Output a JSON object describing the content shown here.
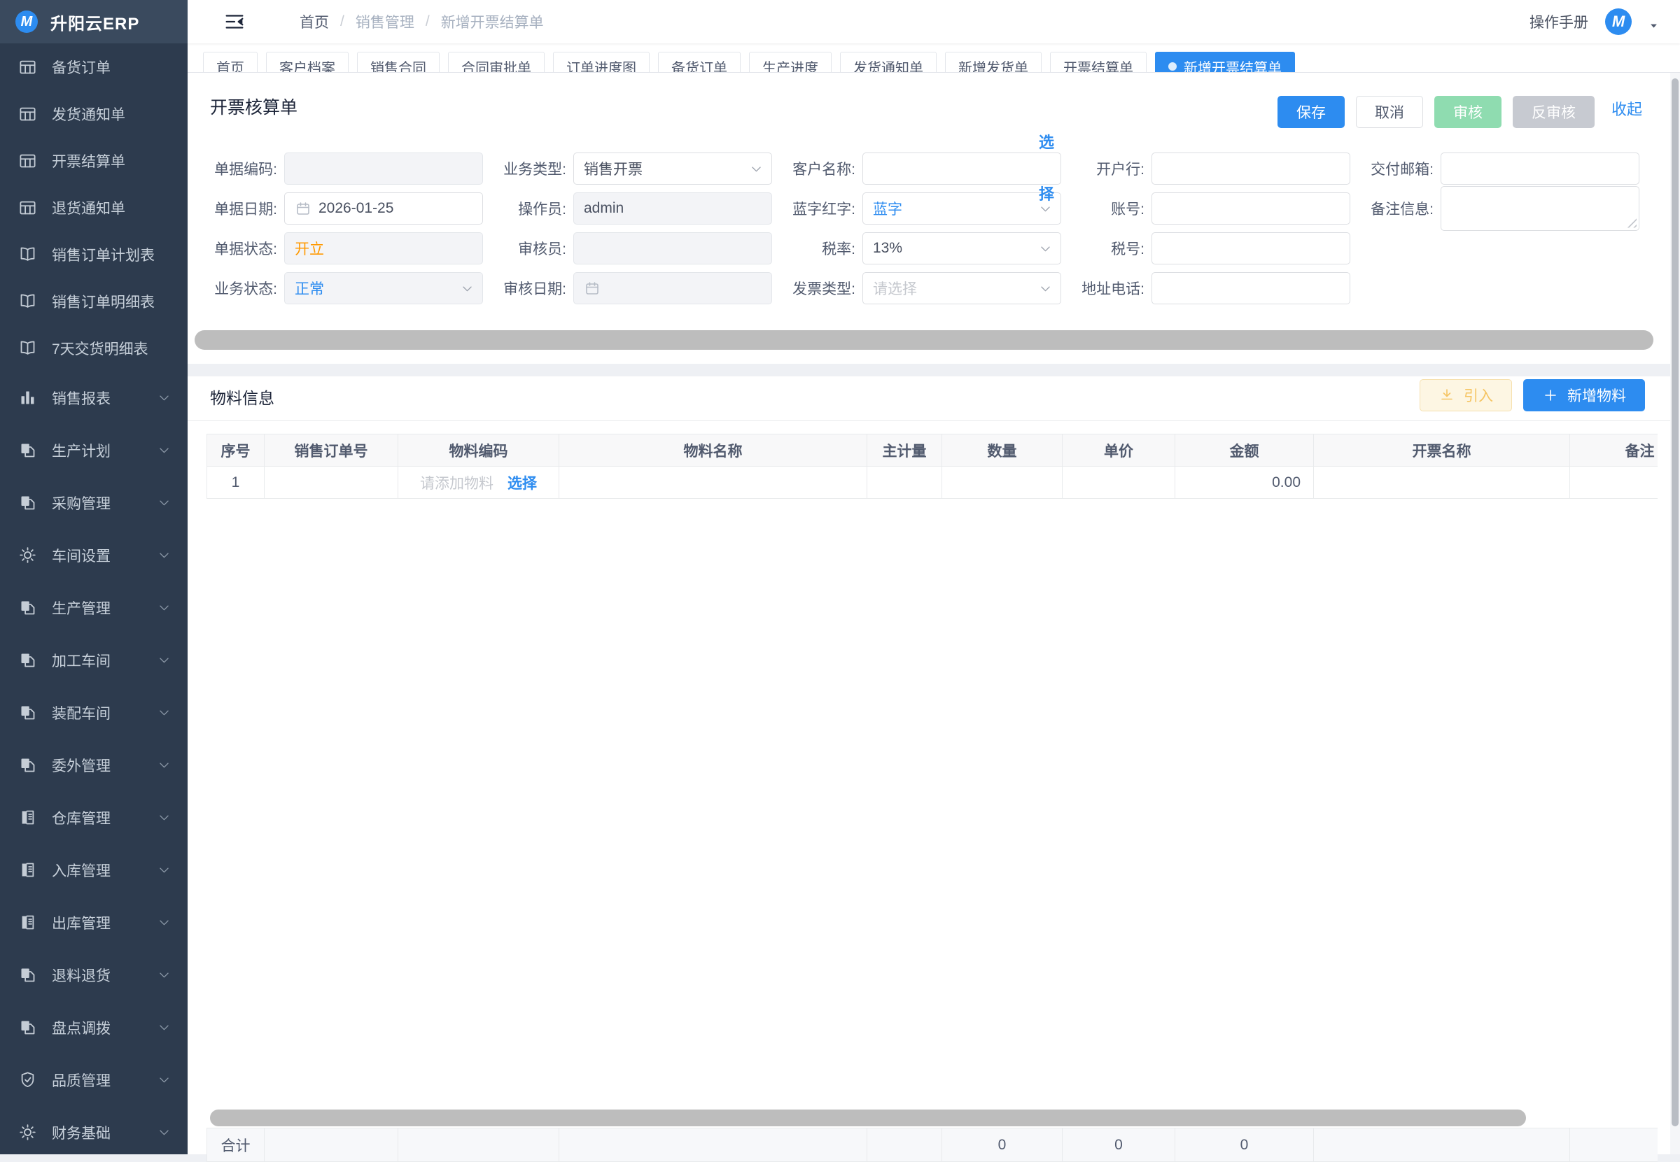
{
  "app": {
    "name": "升阳云ERP",
    "logo_letter": "M"
  },
  "sidebar": {
    "items": [
      {
        "name": "stock-order",
        "label": "备货订单",
        "icon": "grid-icon",
        "type": "leaf"
      },
      {
        "name": "ship-notice",
        "label": "发货通知单",
        "icon": "grid-icon",
        "type": "leaf"
      },
      {
        "name": "invoice-settle",
        "label": "开票结算单",
        "icon": "grid-icon",
        "type": "leaf"
      },
      {
        "name": "return-notice",
        "label": "退货通知单",
        "icon": "grid-icon",
        "type": "leaf"
      },
      {
        "name": "so-plan-report",
        "label": "销售订单计划表",
        "icon": "book-icon",
        "type": "leaf"
      },
      {
        "name": "so-detail-report",
        "label": "销售订单明细表",
        "icon": "book-icon",
        "type": "leaf"
      },
      {
        "name": "delivery-7day",
        "label": "7天交货明细表",
        "icon": "book-icon",
        "type": "leaf"
      },
      {
        "name": "sales-report",
        "label": "销售报表",
        "icon": "chart-icon",
        "type": "group"
      },
      {
        "name": "prod-plan",
        "label": "生产计划",
        "icon": "copy-icon",
        "type": "group"
      },
      {
        "name": "purchase-mgmt",
        "label": "采购管理",
        "icon": "copy-icon",
        "type": "group"
      },
      {
        "name": "workshop-config",
        "label": "车间设置",
        "icon": "gear-icon",
        "type": "group"
      },
      {
        "name": "prod-mgmt",
        "label": "生产管理",
        "icon": "copy-icon",
        "type": "group"
      },
      {
        "name": "process-workshop",
        "label": "加工车间",
        "icon": "copy-icon",
        "type": "group"
      },
      {
        "name": "assembly-workshop",
        "label": "装配车间",
        "icon": "copy-icon",
        "type": "group"
      },
      {
        "name": "outsource-mgmt",
        "label": "委外管理",
        "icon": "copy-icon",
        "type": "group"
      },
      {
        "name": "warehouse-mgmt",
        "label": "仓库管理",
        "icon": "journal-icon",
        "type": "group"
      },
      {
        "name": "inbound-mgmt",
        "label": "入库管理",
        "icon": "journal-icon",
        "type": "group"
      },
      {
        "name": "outbound-mgmt",
        "label": "出库管理",
        "icon": "journal-icon",
        "type": "group"
      },
      {
        "name": "material-return",
        "label": "退料退货",
        "icon": "copy-icon",
        "type": "group"
      },
      {
        "name": "stocktake-transfer",
        "label": "盘点调拨",
        "icon": "copy-icon",
        "type": "group"
      },
      {
        "name": "quality-mgmt",
        "label": "品质管理",
        "icon": "shield-icon",
        "type": "group"
      },
      {
        "name": "finance-base",
        "label": "财务基础",
        "icon": "gear-icon",
        "type": "group"
      }
    ]
  },
  "header": {
    "breadcrumb": [
      "首页",
      "销售管理",
      "新增开票结算单"
    ],
    "manual_link": "操作手册"
  },
  "tabs": {
    "items": [
      "首页",
      "客户档案",
      "销售合同",
      "合同审批单",
      "订单进度图",
      "备货订单",
      "生产进度",
      "发货通知单",
      "新增发货单",
      "开票结算单",
      "新增开票结算单"
    ],
    "active": "新增开票结算单"
  },
  "doc_panel": {
    "title": "开票核算单",
    "buttons": {
      "save": "保存",
      "cancel": "取消",
      "audit": "审核",
      "unaudit": "反审核",
      "collapse": "收起"
    },
    "fields": [
      {
        "name": "doc-code",
        "label": "单据编码:",
        "type": "input",
        "value": "",
        "disabled": true
      },
      {
        "name": "biz-type",
        "label": "业务类型:",
        "type": "select",
        "value": "销售开票"
      },
      {
        "name": "customer-name",
        "label": "客户名称:",
        "type": "input",
        "value": "",
        "select_button": "选择"
      },
      {
        "name": "bank",
        "label": "开户行:",
        "type": "input",
        "value": ""
      },
      {
        "name": "delivery-email",
        "label": "交付邮箱:",
        "type": "input",
        "value": ""
      },
      {
        "name": "doc-date",
        "label": "单据日期:",
        "type": "date",
        "value": "2026-01-25"
      },
      {
        "name": "operator",
        "label": "操作员:",
        "type": "input",
        "value": "admin",
        "disabled": true
      },
      {
        "name": "blue-red",
        "label": "蓝字红字:",
        "type": "select",
        "value": "蓝字",
        "value_color": "blue"
      },
      {
        "name": "account-no",
        "label": "账号:",
        "type": "input",
        "value": ""
      },
      {
        "name": "remark-info",
        "label": "备注信息:",
        "type": "textarea",
        "value": ""
      },
      {
        "name": "doc-status",
        "label": "单据状态:",
        "type": "input",
        "value": "开立",
        "disabled": true,
        "value_color": "orange"
      },
      {
        "name": "auditor",
        "label": "审核员:",
        "type": "input",
        "value": "",
        "disabled": true
      },
      {
        "name": "tax-rate",
        "label": "税率:",
        "type": "select",
        "value": "13%"
      },
      {
        "name": "tax-no",
        "label": "税号:",
        "type": "input",
        "value": ""
      },
      {
        "name": "empty-1",
        "label": "",
        "type": "empty"
      },
      {
        "name": "biz-status",
        "label": "业务状态:",
        "type": "select",
        "value": "正常",
        "disabled": true,
        "value_color": "blue"
      },
      {
        "name": "audit-date",
        "label": "审核日期:",
        "type": "date",
        "value": "",
        "disabled": true
      },
      {
        "name": "invoice-type",
        "label": "发票类型:",
        "type": "select",
        "value": "",
        "placeholder": "请选择"
      },
      {
        "name": "address-phone",
        "label": "地址电话:",
        "type": "input",
        "value": ""
      },
      {
        "name": "empty-2",
        "label": "",
        "type": "empty"
      }
    ]
  },
  "material_panel": {
    "title": "物料信息",
    "import_button": "引入",
    "add_button": "新增物料",
    "table": {
      "columns": [
        "序号",
        "销售订单号",
        "物料编码",
        "物料名称",
        "主计量",
        "数量",
        "单价",
        "金额",
        "开票名称",
        "备注"
      ],
      "rows": [
        {
          "seq": "1",
          "sales_order_no": "",
          "material_code_placeholder": "请添加物料",
          "select_link": "选择",
          "material_name": "",
          "unit": "",
          "qty": "",
          "price": "",
          "amount": "0.00",
          "invoice_name": "",
          "remark": ""
        }
      ],
      "footer": {
        "label": "合计",
        "qty": "0",
        "price": "0",
        "amount": "0"
      }
    }
  },
  "colors": {
    "primary": "#2d8cf0",
    "sidebar_bg": "#2d3b4e",
    "sidebar_header_bg": "#3a4a5e",
    "status_open": "#ff9900",
    "audit_disabled": "#8fdcb0",
    "unaudit_disabled": "#c7cad1"
  }
}
